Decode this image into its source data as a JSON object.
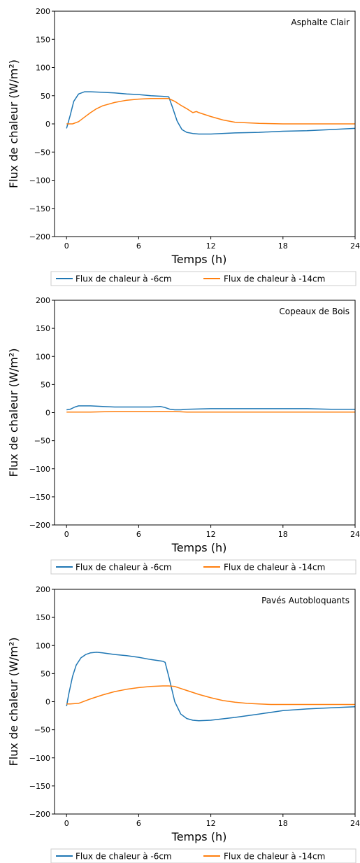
{
  "colors": {
    "series1": "#1f77b4",
    "series2": "#ff7f0e"
  },
  "chart_data": [
    {
      "type": "line",
      "annotation": "Asphalte Clair",
      "xlabel": "Temps (h)",
      "ylabel": "Flux de chaleur (W/m²)",
      "xlim": [
        -1,
        24
      ],
      "ylim": [
        -200,
        200
      ],
      "xticks": [
        0,
        6,
        12,
        18,
        24
      ],
      "yticks": [
        200,
        150,
        100,
        50,
        0,
        -50,
        -100,
        -150,
        -200
      ],
      "legend_position": "bottom",
      "series": [
        {
          "name": "Flux de chaleur à -6cm",
          "x": [
            0,
            0.3,
            0.6,
            1,
            1.5,
            2,
            3,
            4,
            5,
            6,
            7,
            8,
            8.5,
            8.8,
            9.2,
            9.6,
            10,
            10.5,
            11,
            12,
            14,
            16,
            18,
            20,
            22,
            24
          ],
          "y": [
            -8,
            15,
            40,
            53,
            57,
            57,
            56,
            55,
            53,
            52,
            50,
            49,
            48,
            30,
            5,
            -10,
            -15,
            -17,
            -18,
            -18,
            -16,
            -15,
            -13,
            -12,
            -10,
            -8
          ]
        },
        {
          "name": "Flux de chaleur à -14cm",
          "x": [
            0,
            0.5,
            1,
            1.5,
            2,
            2.5,
            3,
            4,
            5,
            6,
            7,
            8,
            8.5,
            9,
            9.5,
            10,
            10.5,
            10.8,
            11,
            12,
            13,
            14,
            16,
            18,
            20,
            22,
            24
          ],
          "y": [
            0,
            0,
            4,
            12,
            20,
            27,
            32,
            38,
            42,
            44,
            45,
            45,
            45,
            40,
            33,
            27,
            20,
            22,
            20,
            13,
            7,
            3,
            1,
            0,
            0,
            0,
            0
          ]
        }
      ]
    },
    {
      "type": "line",
      "annotation": "Copeaux de Bois",
      "xlabel": "Temps (h)",
      "ylabel": "Flux de chaleur (W/m²)",
      "xlim": [
        -1,
        24
      ],
      "ylim": [
        -200,
        200
      ],
      "xticks": [
        0,
        6,
        12,
        18,
        24
      ],
      "yticks": [
        200,
        150,
        100,
        50,
        0,
        -50,
        -100,
        -150,
        -200
      ],
      "legend_position": "bottom",
      "series": [
        {
          "name": "Flux de chaleur à -6cm",
          "x": [
            0,
            0.3,
            0.7,
            1,
            1.5,
            2,
            3,
            4,
            5,
            6,
            7,
            7.8,
            8.2,
            8.6,
            9,
            9.5,
            10,
            12,
            14,
            16,
            18,
            20,
            22,
            24
          ],
          "y": [
            5,
            6,
            10,
            12,
            12,
            12,
            11,
            10,
            10,
            10,
            10,
            11,
            9,
            6,
            5,
            5,
            6,
            7,
            7,
            7,
            7,
            7,
            6,
            6
          ]
        },
        {
          "name": "Flux de chaleur à -14cm",
          "x": [
            0,
            2,
            4,
            6,
            8,
            9,
            10,
            12,
            16,
            20,
            24
          ],
          "y": [
            1,
            1,
            2,
            2,
            2,
            2,
            1,
            1,
            1,
            1,
            1
          ]
        }
      ]
    },
    {
      "type": "line",
      "annotation": "Pavés Autobloquants",
      "xlabel": "Temps (h)",
      "ylabel": "Flux de chaleur (W/m²)",
      "xlim": [
        -1,
        24
      ],
      "ylim": [
        -200,
        200
      ],
      "xticks": [
        0,
        6,
        12,
        18,
        24
      ],
      "yticks": [
        200,
        150,
        100,
        50,
        0,
        -50,
        -100,
        -150,
        -200
      ],
      "legend_position": "bottom",
      "series": [
        {
          "name": "Flux de chaleur à -6cm",
          "x": [
            0,
            0.2,
            0.5,
            0.8,
            1.2,
            1.6,
            2,
            2.5,
            3,
            4,
            5,
            6,
            7,
            8,
            8.2,
            8.5,
            9,
            9.5,
            10,
            10.5,
            11,
            12,
            14,
            16,
            18,
            20,
            22,
            24
          ],
          "y": [
            -8,
            15,
            45,
            65,
            78,
            84,
            87,
            88,
            87,
            84,
            82,
            79,
            75,
            72,
            70,
            45,
            0,
            -22,
            -30,
            -33,
            -34,
            -33,
            -28,
            -22,
            -16,
            -13,
            -11,
            -9
          ]
        },
        {
          "name": "Flux de chaleur à -14cm",
          "x": [
            0,
            0.3,
            1,
            2,
            3,
            4,
            5,
            6,
            7,
            8,
            8.5,
            9,
            10,
            11,
            12,
            13,
            14,
            15,
            16,
            17,
            18,
            20,
            22,
            24
          ],
          "y": [
            -4,
            -4,
            -3,
            5,
            12,
            18,
            22,
            25,
            27,
            28,
            28,
            27,
            20,
            13,
            7,
            2,
            -1,
            -3,
            -4,
            -5,
            -5,
            -5,
            -5,
            -5
          ]
        }
      ]
    }
  ]
}
